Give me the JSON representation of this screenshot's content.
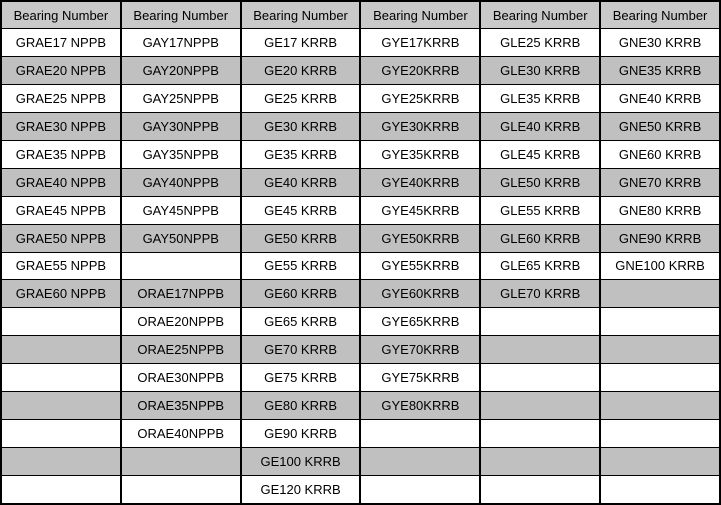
{
  "colors": {
    "header_bg": "#c9c9c9",
    "row_alt_bg": "#c0c0c0",
    "row_bg": "#ffffff",
    "border": "#000000",
    "text": "#000000"
  },
  "table": {
    "headers": [
      "Bearing Number",
      "Bearing Number",
      "Bearing Number",
      "Bearing Number",
      "Bearing Number",
      "Bearing Number"
    ],
    "rows": [
      [
        "GRAE17 NPPB",
        "GAY17NPPB",
        "GE17 KRRB",
        "GYE17KRRB",
        "GLE25 KRRB",
        "GNE30 KRRB"
      ],
      [
        "GRAE20 NPPB",
        "GAY20NPPB",
        "GE20 KRRB",
        "GYE20KRRB",
        "GLE30 KRRB",
        "GNE35 KRRB"
      ],
      [
        "GRAE25 NPPB",
        "GAY25NPPB",
        "GE25 KRRB",
        "GYE25KRRB",
        "GLE35 KRRB",
        "GNE40 KRRB"
      ],
      [
        "GRAE30 NPPB",
        "GAY30NPPB",
        "GE30 KRRB",
        "GYE30KRRB",
        "GLE40 KRRB",
        "GNE50 KRRB"
      ],
      [
        "GRAE35 NPPB",
        "GAY35NPPB",
        "GE35 KRRB",
        "GYE35KRRB",
        "GLE45 KRRB",
        "GNE60 KRRB"
      ],
      [
        "GRAE40 NPPB",
        "GAY40NPPB",
        "GE40 KRRB",
        "GYE40KRRB",
        "GLE50 KRRB",
        "GNE70 KRRB"
      ],
      [
        "GRAE45 NPPB",
        "GAY45NPPB",
        "GE45 KRRB",
        "GYE45KRRB",
        "GLE55 KRRB",
        "GNE80 KRRB"
      ],
      [
        "GRAE50 NPPB",
        "GAY50NPPB",
        "GE50 KRRB",
        "GYE50KRRB",
        "GLE60 KRRB",
        "GNE90 KRRB"
      ],
      [
        "GRAE55 NPPB",
        "",
        "GE55 KRRB",
        "GYE55KRRB",
        "GLE65 KRRB",
        "GNE100 KRRB"
      ],
      [
        "GRAE60 NPPB",
        "ORAE17NPPB",
        "GE60 KRRB",
        "GYE60KRRB",
        "GLE70 KRRB",
        ""
      ],
      [
        "",
        "ORAE20NPPB",
        "GE65 KRRB",
        "GYE65KRRB",
        "",
        ""
      ],
      [
        "",
        "ORAE25NPPB",
        "GE70 KRRB",
        "GYE70KRRB",
        "",
        ""
      ],
      [
        "",
        "ORAE30NPPB",
        "GE75 KRRB",
        "GYE75KRRB",
        "",
        ""
      ],
      [
        "",
        "ORAE35NPPB",
        "GE80 KRRB",
        "GYE80KRRB",
        "",
        ""
      ],
      [
        "",
        "ORAE40NPPB",
        "GE90 KRRB",
        "",
        "",
        ""
      ],
      [
        "",
        "",
        "GE100 KRRB",
        "",
        "",
        ""
      ],
      [
        "",
        "",
        "GE120 KRRB",
        "",
        "",
        ""
      ]
    ]
  }
}
